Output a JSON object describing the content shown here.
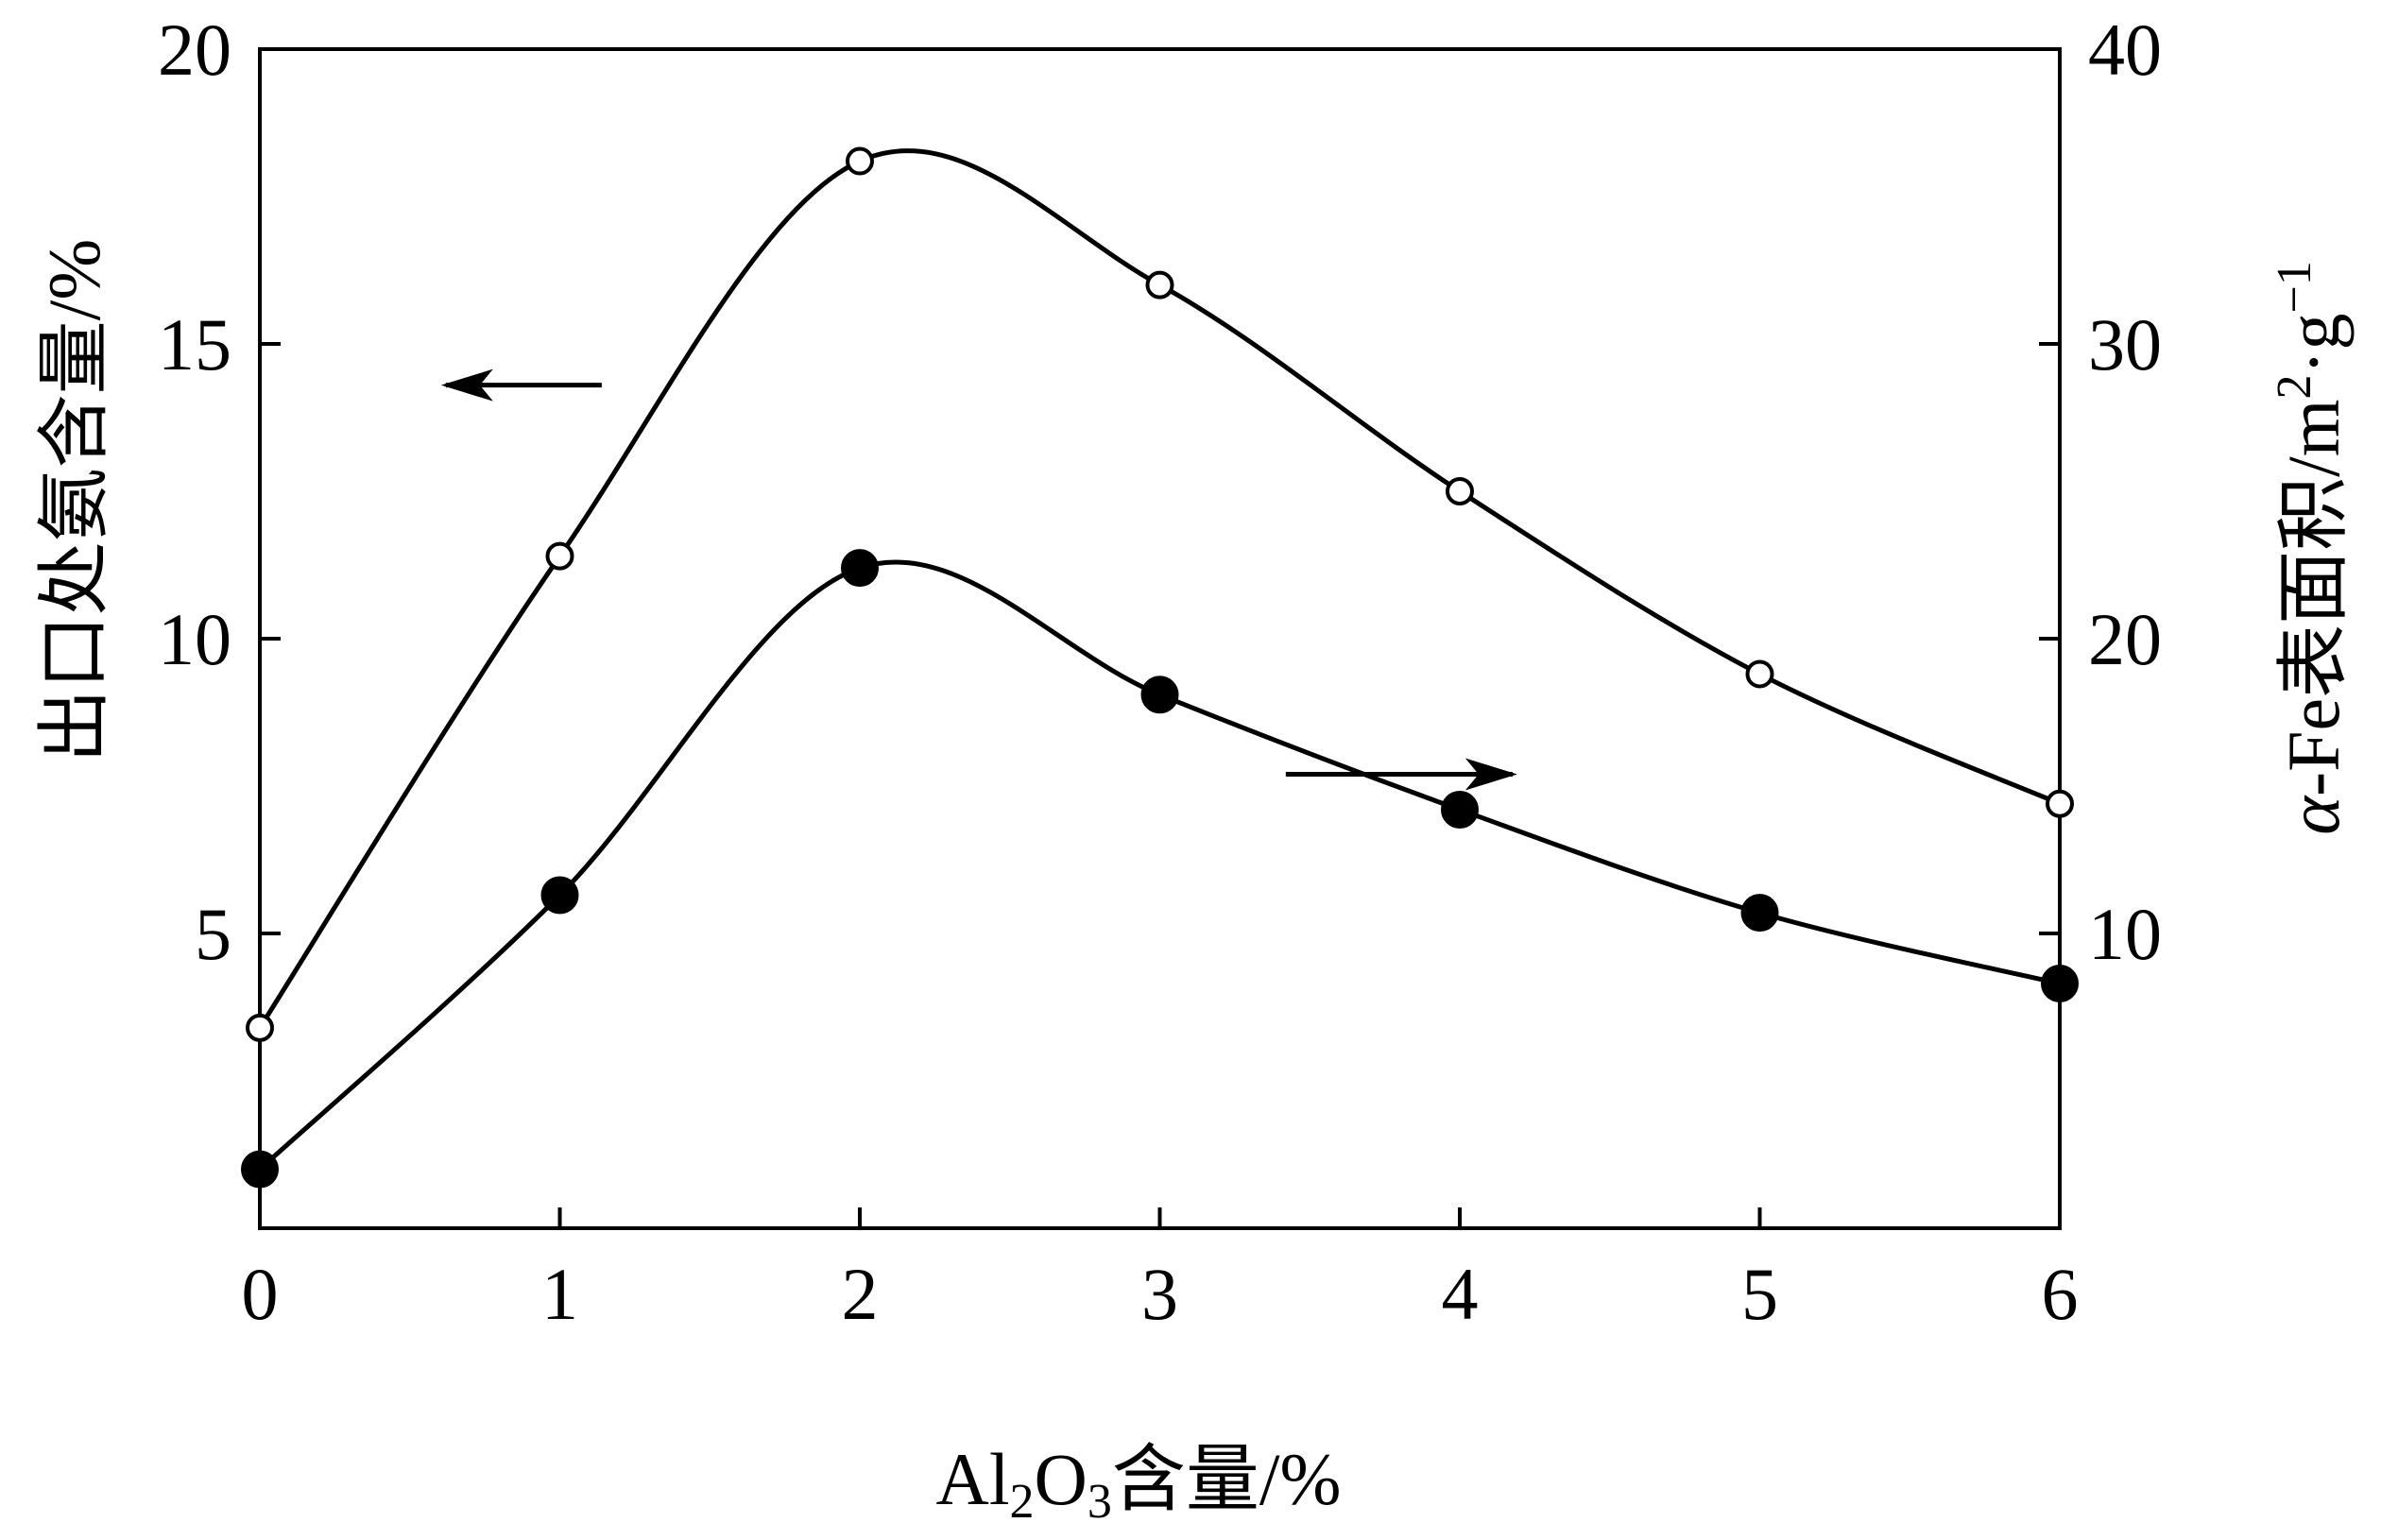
{
  "chart_data": {
    "type": "line",
    "x": [
      0,
      1,
      2,
      3,
      4,
      5,
      6
    ],
    "xlabel": {
      "base": "Al",
      "sub1": "2",
      "mid": "O",
      "sub2": "3",
      "rest": "含量/%"
    },
    "ylabel_left": "出口处氨含量/%",
    "ylabel_right": {
      "alpha": "α",
      "mid": "-Fe表面积/m",
      "sup1": "2",
      "dot": "·g",
      "sup2": "−1"
    },
    "xlim": [
      0,
      6
    ],
    "ylim_left": [
      0,
      20
    ],
    "ylim_right": [
      0,
      40
    ],
    "xticks": [
      "0",
      "1",
      "2",
      "3",
      "4",
      "5",
      "6"
    ],
    "yticks_left": [
      "5",
      "10",
      "15",
      "20"
    ],
    "yticks_right": [
      "10",
      "20",
      "30",
      "40"
    ],
    "series": [
      {
        "axis": "left",
        "marker": "open-circle",
        "arrow": "left",
        "values": [
          3.4,
          11.4,
          18.1,
          16.0,
          12.5,
          9.4,
          7.2
        ]
      },
      {
        "axis": "right",
        "marker": "filled-circle",
        "arrow": "right",
        "values": [
          2.0,
          11.3,
          22.4,
          18.1,
          14.2,
          10.7,
          8.3
        ]
      }
    ],
    "grid": false,
    "legend": "none"
  }
}
